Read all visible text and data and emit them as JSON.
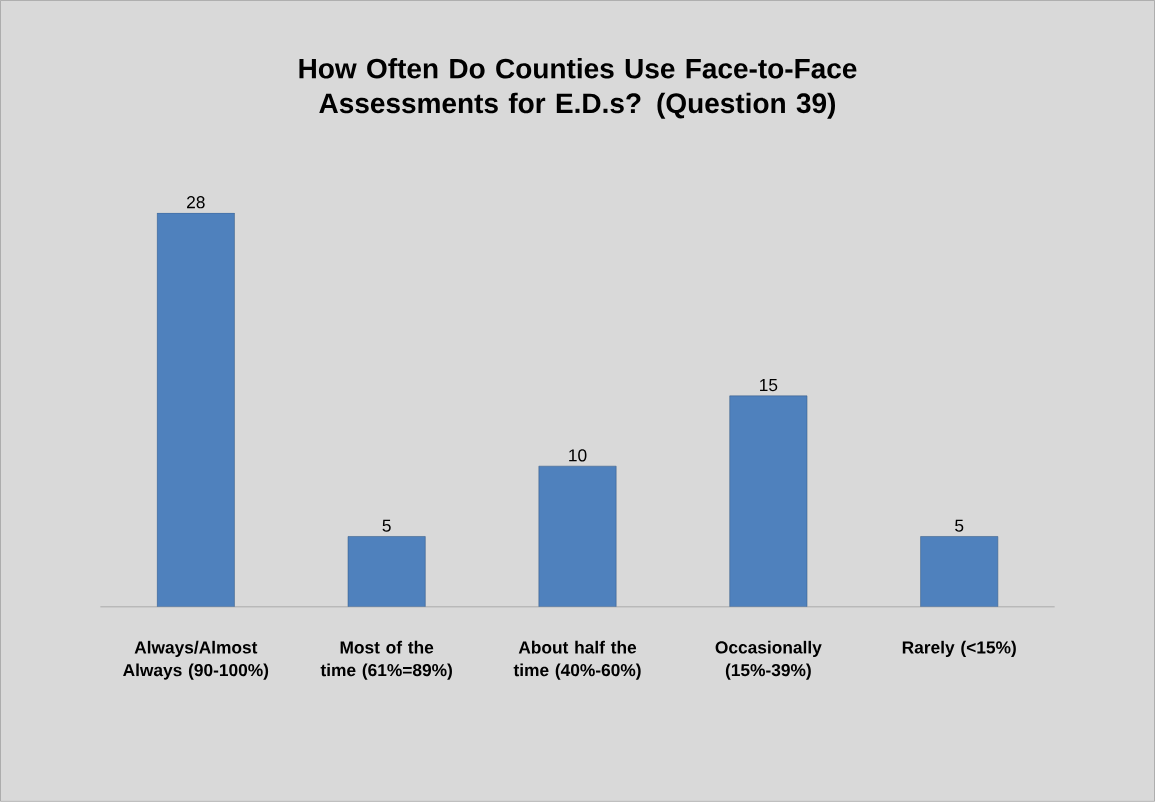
{
  "chart_data": {
    "type": "bar",
    "title": "How Often Do Counties Use Face-to-Face Assessments for E.D.s? (Question 39)",
    "categories": [
      "Always/Almost Always (90-100%)",
      "Most of the time (61%=89%)",
      "About half the time (40%-60%)",
      "Occasionally (15%-39%)",
      "Rarely (<15%)"
    ],
    "values": [
      28,
      5,
      10,
      15,
      5
    ],
    "color": "#4f81bd",
    "data_labels": true
  }
}
